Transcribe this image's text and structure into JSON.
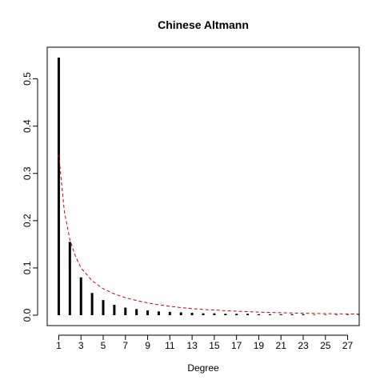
{
  "chart_data": {
    "type": "bar",
    "title": "Chinese Altmann",
    "xlabel": "Degree",
    "ylabel": "",
    "x_ticks": [
      1,
      3,
      5,
      7,
      9,
      11,
      13,
      15,
      17,
      19,
      21,
      23,
      25,
      27
    ],
    "y_ticks": [
      0.0,
      0.1,
      0.2,
      0.3,
      0.4,
      0.5
    ],
    "y_tick_labels": [
      "0.0",
      "0.1",
      "0.2",
      "0.3",
      "0.4",
      "0.5"
    ],
    "xlim": [
      -0.04,
      28.04
    ],
    "ylim": [
      -0.022,
      0.567
    ],
    "grid": false,
    "series": [
      {
        "style": "spikes",
        "color": "#000000",
        "x": [
          1,
          2,
          3,
          4,
          5,
          6,
          7,
          8,
          9,
          10,
          11,
          12,
          13,
          14,
          15,
          16,
          17,
          18,
          19,
          20,
          21,
          22,
          23,
          24,
          25,
          26,
          27,
          28
        ],
        "values": [
          0.545,
          0.155,
          0.08,
          0.047,
          0.032,
          0.022,
          0.016,
          0.013,
          0.01,
          0.008,
          0.007,
          0.006,
          0.005,
          0.004,
          0.004,
          0.003,
          0.003,
          0.003,
          0.002,
          0.002,
          0.002,
          0.002,
          0.002,
          0.001,
          0.001,
          0.001,
          0.001,
          0.001
        ]
      },
      {
        "style": "dashed-line",
        "color": "#cc0000",
        "x": [
          1,
          1.5,
          2,
          2.5,
          3,
          4,
          5,
          6,
          7,
          8,
          9,
          10,
          11,
          12,
          13,
          14,
          15,
          16,
          17,
          18,
          19,
          20,
          21,
          22,
          23,
          24,
          25,
          26,
          27,
          28
        ],
        "values": [
          0.34,
          0.22,
          0.16,
          0.125,
          0.1,
          0.073,
          0.056,
          0.045,
          0.037,
          0.031,
          0.026,
          0.022,
          0.019,
          0.016,
          0.014,
          0.012,
          0.011,
          0.0095,
          0.0085,
          0.0075,
          0.0065,
          0.0058,
          0.0052,
          0.0046,
          0.0041,
          0.0037,
          0.0033,
          0.003,
          0.0027,
          0.0024
        ]
      }
    ]
  }
}
